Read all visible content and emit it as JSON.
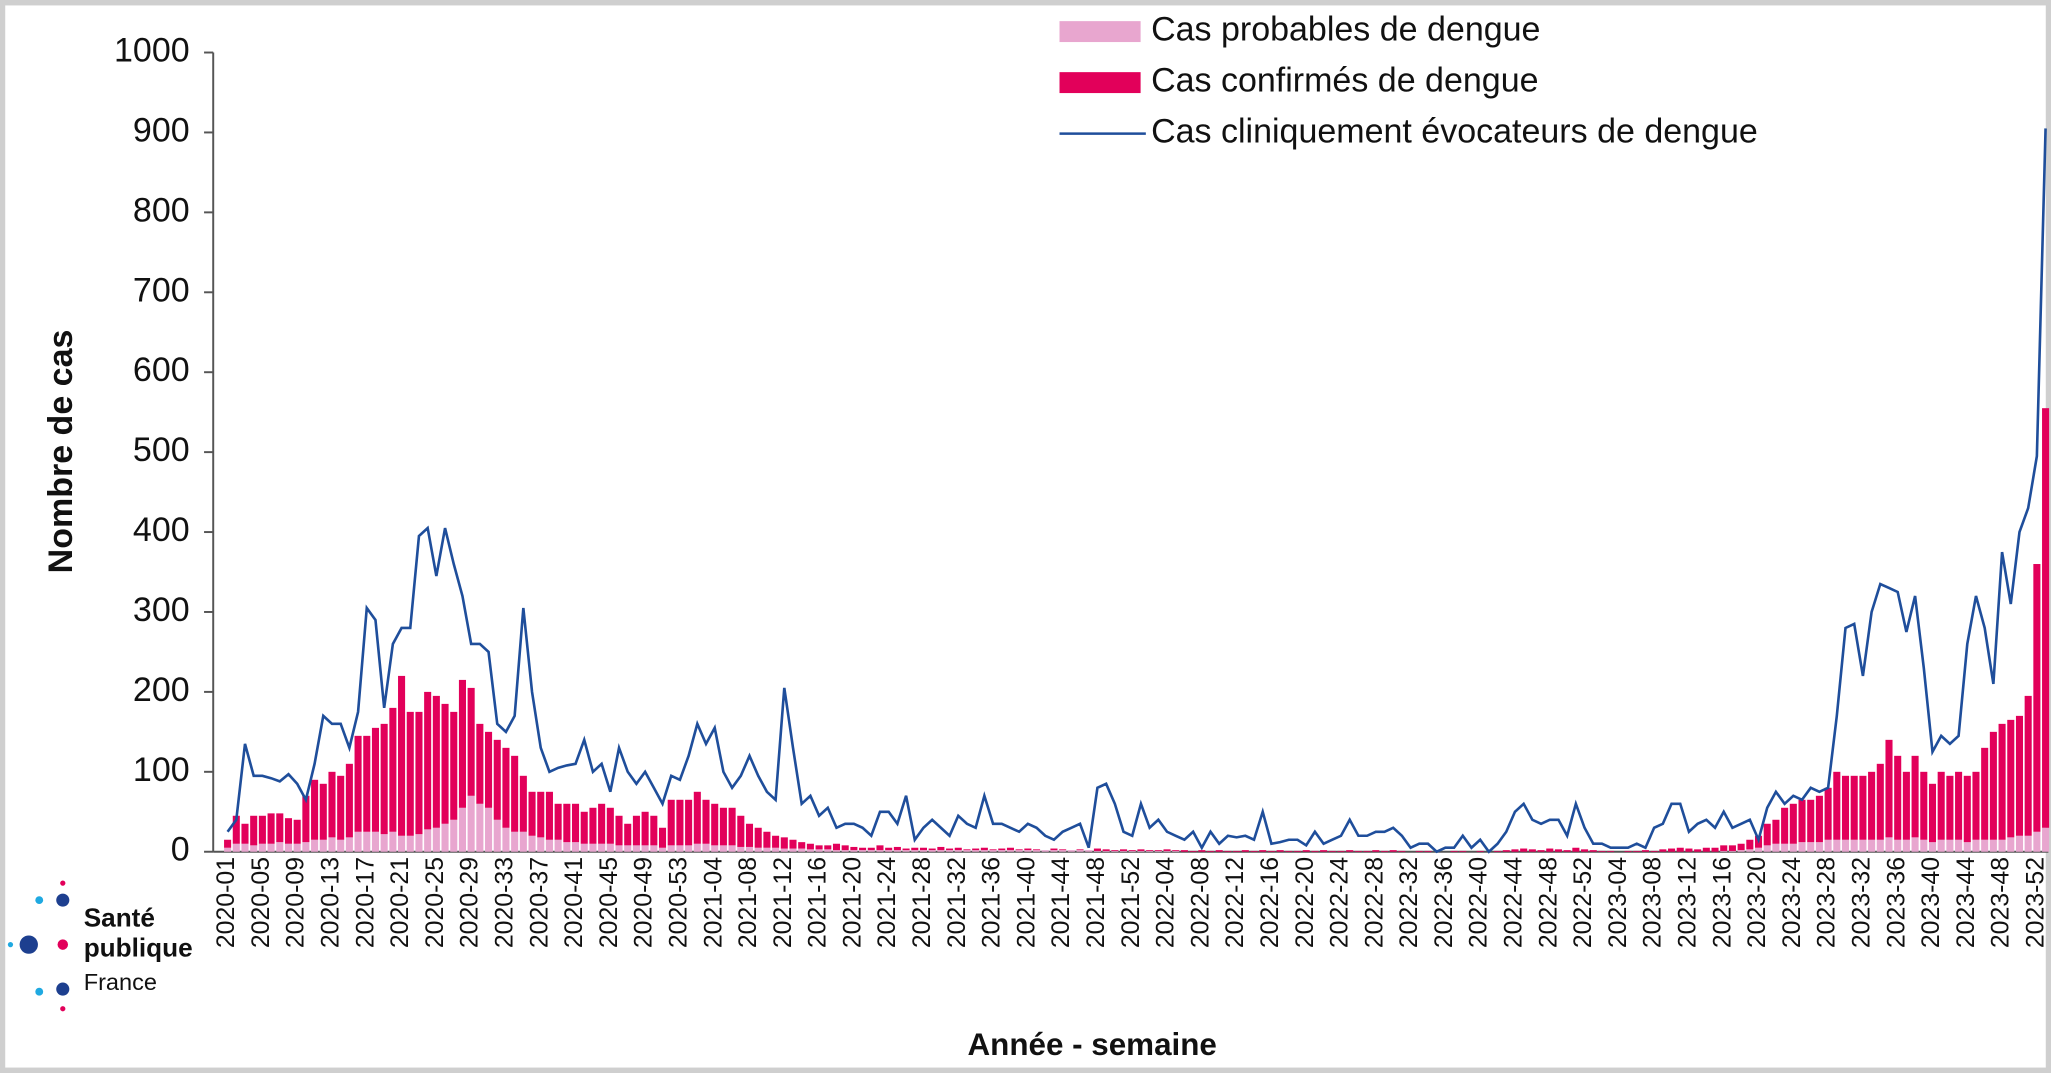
{
  "chart_data": {
    "type": "bar",
    "xlabel": "Année - semaine",
    "ylabel": "Nombre de cas",
    "logo": [
      "Santé",
      "publique",
      "France"
    ],
    "ylim": [
      0,
      1000
    ],
    "yticks": [
      0,
      100,
      200,
      300,
      400,
      500,
      600,
      700,
      800,
      900,
      1000
    ],
    "stacked": true,
    "legend": "top",
    "categories": [
      "2020-01",
      null,
      null,
      null,
      "2020-05",
      null,
      null,
      null,
      "2020-09",
      null,
      null,
      null,
      "2020-13",
      null,
      null,
      null,
      "2020-17",
      null,
      null,
      null,
      "2020-21",
      null,
      null,
      null,
      "2020-25",
      null,
      null,
      null,
      "2020-29",
      null,
      null,
      null,
      "2020-33",
      null,
      null,
      null,
      "2020-37",
      null,
      null,
      null,
      "2020-41",
      null,
      null,
      null,
      "2020-45",
      null,
      null,
      null,
      "2020-49",
      null,
      null,
      null,
      "2020-53",
      null,
      null,
      null,
      "2021-04",
      null,
      null,
      null,
      "2021-08",
      null,
      null,
      null,
      "2021-12",
      null,
      null,
      null,
      "2021-16",
      null,
      null,
      null,
      "2021-20",
      null,
      null,
      null,
      "2021-24",
      null,
      null,
      null,
      "2021-28",
      null,
      null,
      null,
      "2021-32",
      null,
      null,
      null,
      "2021-36",
      null,
      null,
      null,
      "2021-40",
      null,
      null,
      null,
      "2021-44",
      null,
      null,
      null,
      "2021-48",
      null,
      null,
      null,
      "2021-52",
      null,
      null,
      null,
      "2022-04",
      null,
      null,
      null,
      "2022-08",
      null,
      null,
      null,
      "2022-12",
      null,
      null,
      null,
      "2022-16",
      null,
      null,
      null,
      "2022-20",
      null,
      null,
      null,
      "2022-24",
      null,
      null,
      null,
      "2022-28",
      null,
      null,
      null,
      "2022-32",
      null,
      null,
      null,
      "2022-36",
      null,
      null,
      null,
      "2022-40",
      null,
      null,
      null,
      "2022-44",
      null,
      null,
      null,
      "2022-48",
      null,
      null,
      null,
      "2022-52",
      null,
      null,
      null,
      "2023-04",
      null,
      null,
      null,
      "2023-08",
      null,
      null,
      null,
      "2023-12",
      null,
      null,
      null,
      "2023-16",
      null,
      null,
      null,
      "2023-20",
      null,
      null,
      null,
      "2023-24",
      null,
      null,
      null,
      "2023-28",
      null,
      null,
      null,
      "2023-32",
      null,
      null,
      null,
      "2023-36",
      null,
      null,
      null,
      "2023-40",
      null,
      null,
      null,
      "2023-44",
      null,
      null,
      null,
      "2023-48",
      null,
      null,
      null,
      "2023-52",
      null
    ],
    "series": [
      {
        "name": "Cas probables de dengue",
        "type": "bar",
        "color": "#e8a6cf",
        "values": [
          5,
          10,
          10,
          8,
          10,
          10,
          12,
          10,
          10,
          12,
          15,
          15,
          18,
          15,
          18,
          25,
          25,
          25,
          22,
          25,
          20,
          20,
          22,
          28,
          30,
          35,
          40,
          55,
          70,
          60,
          55,
          40,
          30,
          25,
          25,
          20,
          18,
          15,
          15,
          12,
          12,
          10,
          10,
          10,
          10,
          8,
          8,
          8,
          8,
          8,
          5,
          8,
          8,
          8,
          10,
          10,
          8,
          8,
          8,
          6,
          6,
          5,
          5,
          5,
          4,
          4,
          4,
          3,
          3,
          3,
          2,
          2,
          2,
          2,
          2,
          2,
          2,
          2,
          2,
          2,
          2,
          2,
          2,
          2,
          2,
          2,
          2,
          2,
          2,
          2,
          2,
          2,
          2,
          2,
          2,
          2,
          2,
          2,
          2,
          2,
          1,
          1,
          1,
          1,
          1,
          1,
          1,
          1,
          1,
          1,
          0,
          0,
          0,
          0,
          0,
          0,
          0,
          0,
          0,
          0,
          0,
          0,
          0,
          0,
          0,
          0,
          0,
          0,
          0,
          0,
          0,
          0,
          0,
          0,
          0,
          0,
          0,
          0,
          0,
          0,
          0,
          0,
          0,
          0,
          0,
          0,
          0,
          0,
          0,
          0,
          0,
          0,
          0,
          0,
          0,
          0,
          0,
          0,
          0,
          0,
          0,
          0,
          0,
          0,
          0,
          0,
          0,
          0,
          0,
          0,
          0,
          0,
          1,
          1,
          2,
          3,
          5,
          8,
          10,
          10,
          10,
          12,
          12,
          12,
          15,
          15,
          15,
          15,
          15,
          15,
          15,
          18,
          15,
          15,
          18,
          15,
          12,
          15,
          15,
          15,
          12,
          15,
          15,
          15,
          15,
          18,
          20,
          20,
          25,
          30
        ]
      },
      {
        "name": "Cas confirmés de dengue",
        "type": "bar",
        "color": "#e2005a",
        "values": [
          10,
          35,
          25,
          37,
          35,
          38,
          36,
          32,
          30,
          58,
          75,
          70,
          82,
          80,
          92,
          120,
          120,
          130,
          138,
          155,
          200,
          155,
          153,
          172,
          165,
          150,
          135,
          160,
          135,
          100,
          95,
          100,
          100,
          95,
          70,
          55,
          57,
          60,
          45,
          48,
          48,
          40,
          45,
          50,
          45,
          37,
          27,
          37,
          42,
          37,
          25,
          57,
          57,
          57,
          65,
          55,
          52,
          47,
          47,
          39,
          29,
          25,
          20,
          15,
          14,
          11,
          8,
          7,
          5,
          5,
          8,
          6,
          4,
          3,
          3,
          6,
          3,
          4,
          2,
          3,
          3,
          2,
          4,
          2,
          3,
          1,
          2,
          3,
          1,
          2,
          3,
          1,
          2,
          1,
          0,
          2,
          1,
          0,
          1,
          0,
          3,
          2,
          1,
          2,
          1,
          2,
          1,
          1,
          2,
          1,
          2,
          1,
          2,
          1,
          2,
          1,
          1,
          2,
          1,
          2,
          1,
          2,
          1,
          1,
          2,
          1,
          2,
          1,
          1,
          2,
          1,
          1,
          2,
          1,
          2,
          1,
          0,
          1,
          1,
          0,
          0,
          1,
          1,
          0,
          1,
          0,
          1,
          2,
          3,
          4,
          3,
          2,
          4,
          3,
          2,
          5,
          3,
          2,
          1,
          1,
          0,
          1,
          1,
          2,
          1,
          3,
          4,
          5,
          4,
          3,
          5,
          5,
          7,
          7,
          8,
          12,
          15,
          27,
          30,
          45,
          50,
          53,
          53,
          58,
          65,
          85,
          80,
          80,
          80,
          85,
          95,
          122,
          105,
          85,
          102,
          85,
          73,
          85,
          80,
          85,
          83,
          85,
          115,
          135,
          145,
          147,
          150,
          175,
          335,
          525
        ]
      },
      {
        "name": "Cas cliniquement évocateurs de dengue",
        "type": "line",
        "color": "#1f4e9b",
        "values": [
          25,
          40,
          135,
          95,
          95,
          92,
          88,
          97,
          85,
          65,
          110,
          170,
          160,
          160,
          130,
          175,
          305,
          290,
          180,
          260,
          280,
          280,
          395,
          405,
          345,
          405,
          360,
          320,
          260,
          260,
          250,
          160,
          150,
          170,
          305,
          200,
          130,
          100,
          105,
          108,
          110,
          140,
          100,
          110,
          75,
          130,
          100,
          85,
          100,
          80,
          60,
          95,
          90,
          120,
          160,
          135,
          155,
          100,
          80,
          95,
          120,
          95,
          75,
          65,
          205,
          130,
          60,
          70,
          45,
          55,
          30,
          35,
          35,
          30,
          20,
          50,
          50,
          35,
          70,
          15,
          30,
          40,
          30,
          20,
          45,
          35,
          30,
          70,
          35,
          35,
          30,
          25,
          35,
          30,
          20,
          15,
          25,
          30,
          35,
          5,
          80,
          85,
          60,
          25,
          20,
          60,
          30,
          40,
          25,
          20,
          15,
          25,
          5,
          25,
          10,
          20,
          18,
          20,
          15,
          50,
          10,
          12,
          15,
          15,
          8,
          25,
          10,
          15,
          20,
          40,
          20,
          20,
          25,
          25,
          30,
          20,
          5,
          10,
          10,
          0,
          5,
          5,
          20,
          5,
          15,
          0,
          10,
          25,
          50,
          60,
          40,
          35,
          40,
          40,
          20,
          60,
          30,
          10,
          10,
          5,
          5,
          5,
          10,
          5,
          30,
          35,
          60,
          60,
          25,
          35,
          40,
          30,
          50,
          30,
          35,
          40,
          15,
          55,
          75,
          60,
          70,
          65,
          80,
          75,
          80,
          170,
          280,
          285,
          220,
          300,
          335,
          330,
          325,
          275,
          320,
          230,
          125,
          145,
          135,
          145,
          260,
          320,
          280,
          210,
          375,
          310,
          400,
          430,
          495,
          905
        ]
      }
    ]
  }
}
